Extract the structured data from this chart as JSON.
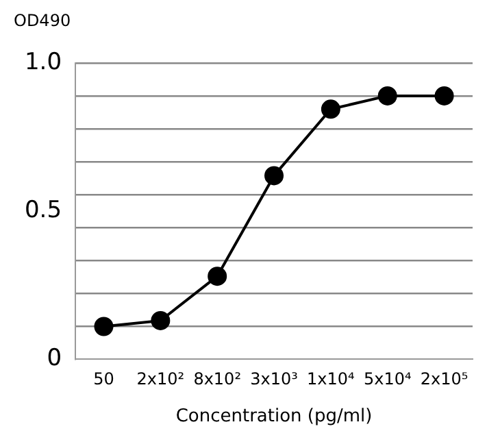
{
  "chart_data": {
    "type": "line",
    "ylabel": "OD490",
    "xlabel": "Concentration (pg/ml)",
    "categories": [
      "50",
      "2x10²",
      "8x10²",
      "3x10³",
      "1x10⁴",
      "5x10⁴",
      "2x10⁵"
    ],
    "series": [
      {
        "color": "#000000",
        "values": [
          0.11,
          0.13,
          0.28,
          0.62,
          0.845,
          0.89,
          0.89
        ]
      }
    ],
    "ylim": [
      0,
      1.0
    ],
    "yticks": [
      0,
      {
        "value": 0.111,
        "label": null
      },
      {
        "value": 0.222,
        "label": null
      },
      {
        "value": 0.333,
        "label": null
      },
      {
        "value": 0.444,
        "label": null
      },
      {
        "value": 0.5,
        "label": "0.5"
      },
      {
        "value": 0.556,
        "label": null
      },
      {
        "value": 0.667,
        "label": null
      },
      {
        "value": 0.778,
        "label": null
      },
      {
        "value": 0.889,
        "label": null
      },
      {
        "value": 1.0,
        "label": "1.0"
      }
    ],
    "grid": "y",
    "legend": false,
    "marker": "circle",
    "line_style": "solid"
  }
}
